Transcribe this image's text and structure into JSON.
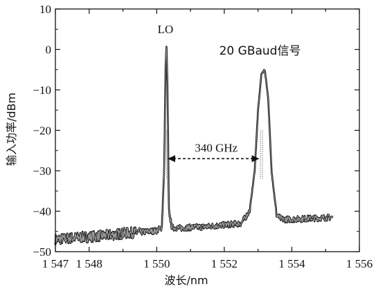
{
  "chart_data": {
    "type": "line",
    "xlabel": "波长/nm",
    "ylabel": "输入功率/dBm",
    "xlim": [
      1547,
      1556
    ],
    "ylim": [
      -50,
      10
    ],
    "x_ticks": [
      1547,
      1548,
      1549,
      1550,
      1551,
      1552,
      1553,
      1554,
      1555,
      1556
    ],
    "x_tick_labels": [
      "1 547",
      "1 548",
      "",
      "1 550",
      "",
      "1 552",
      "",
      "1 554",
      "",
      "1 556"
    ],
    "y_ticks": [
      -50,
      -40,
      -30,
      -20,
      -10,
      0,
      10
    ],
    "y_tick_labels": [
      "−50",
      "−40",
      "−30",
      "−20",
      "−10",
      "0",
      "10"
    ],
    "series": [
      {
        "x": [
          1547.0,
          1547.5,
          1548.0,
          1548.5,
          1549.0,
          1549.5,
          1550.0,
          1550.15,
          1550.22,
          1550.26,
          1550.29,
          1550.32,
          1550.36,
          1550.45,
          1550.7,
          1551.0,
          1551.5,
          1552.0,
          1552.5,
          1552.75,
          1552.9,
          1553.0,
          1553.1,
          1553.2,
          1553.3,
          1553.4,
          1553.55,
          1553.7,
          1554.0,
          1554.5,
          1555.0,
          1555.2
        ],
        "y": [
          -47,
          -46.6,
          -46.3,
          -46,
          -45.5,
          -45.2,
          -44.8,
          -44,
          -30,
          -5,
          1,
          -10,
          -40,
          -44,
          -44.2,
          -44,
          -43.8,
          -43.4,
          -43,
          -40,
          -30,
          -15,
          -6,
          -5,
          -12,
          -30,
          -41,
          -42,
          -42,
          -41.8,
          -41.6,
          -41.5
        ]
      }
    ],
    "annotations": {
      "lo_label": "LO",
      "signal_label": "20 GBaud信号",
      "spacing_label": "340 GHz",
      "spacing_from": {
        "x": 1550.26,
        "y": -27
      },
      "spacing_to": {
        "x": 1553.1,
        "y": -27
      },
      "lo_label_at": {
        "x": 1550.26,
        "y": 2
      },
      "signal_label_at": {
        "x": 1553.1,
        "y": -4
      },
      "spacing_label_at": {
        "x": 1551.7,
        "y": -27
      }
    }
  }
}
